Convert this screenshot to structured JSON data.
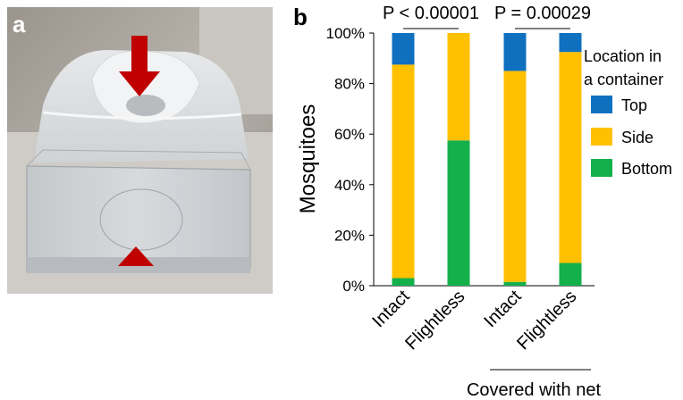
{
  "panels": {
    "a_label": "a",
    "b_label": "b"
  },
  "photo": {
    "description_icon": "mosquito-container-photo",
    "arrow_color": "#c00000"
  },
  "chart_data": {
    "type": "bar",
    "stacked": true,
    "categories": [
      "Intact",
      "Flightless",
      "Intact",
      "Flightless"
    ],
    "series": [
      {
        "name": "Bottom",
        "color": "#13b04b",
        "values": [
          3,
          57.5,
          1.5,
          9
        ]
      },
      {
        "name": "Side",
        "color": "#ffc000",
        "values": [
          84.5,
          42.5,
          83.5,
          83.5
        ]
      },
      {
        "name": "Top",
        "color": "#0f70c0",
        "values": [
          12.5,
          0,
          15,
          7.5
        ]
      }
    ],
    "ylabel": "Mosquitoes",
    "ylim": [
      0,
      100
    ],
    "yticks": [
      "0%",
      "20%",
      "40%",
      "60%",
      "80%",
      "100%"
    ],
    "legend": {
      "title_line1": "Location in",
      "title_line2": "a container",
      "entries": [
        "Top",
        "Side",
        "Bottom"
      ],
      "placement": "right"
    },
    "annotations": {
      "p_left": "P < 0.00001",
      "p_right": "P = 0.00029",
      "group_label": "Covered with net"
    },
    "grid": false
  }
}
